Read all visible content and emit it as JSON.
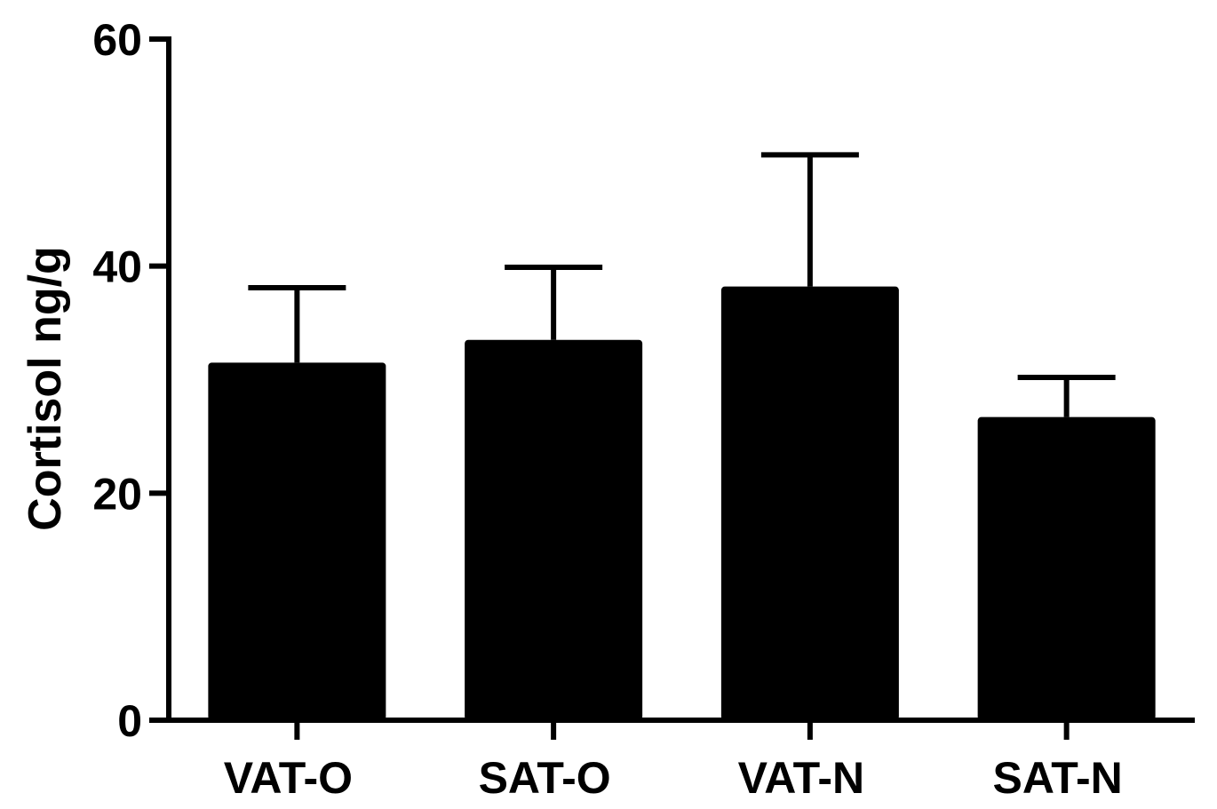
{
  "chart_data": {
    "type": "bar",
    "categories": [
      "VAT-O",
      "SAT-O",
      "VAT-N",
      "SAT-N"
    ],
    "values": [
      31.5,
      33.5,
      38.2,
      26.7
    ],
    "error_bars": [
      6.6,
      6.4,
      11.6,
      3.5
    ],
    "title": "",
    "xlabel": "",
    "ylabel": "Cortisol ng/g",
    "ylim": [
      0,
      60
    ],
    "yticks": [
      0,
      20,
      40,
      60
    ],
    "ytick_labels": [
      "0",
      "20",
      "40",
      "60"
    ],
    "grid": false,
    "legend": "none",
    "bar_color": "#000000"
  }
}
